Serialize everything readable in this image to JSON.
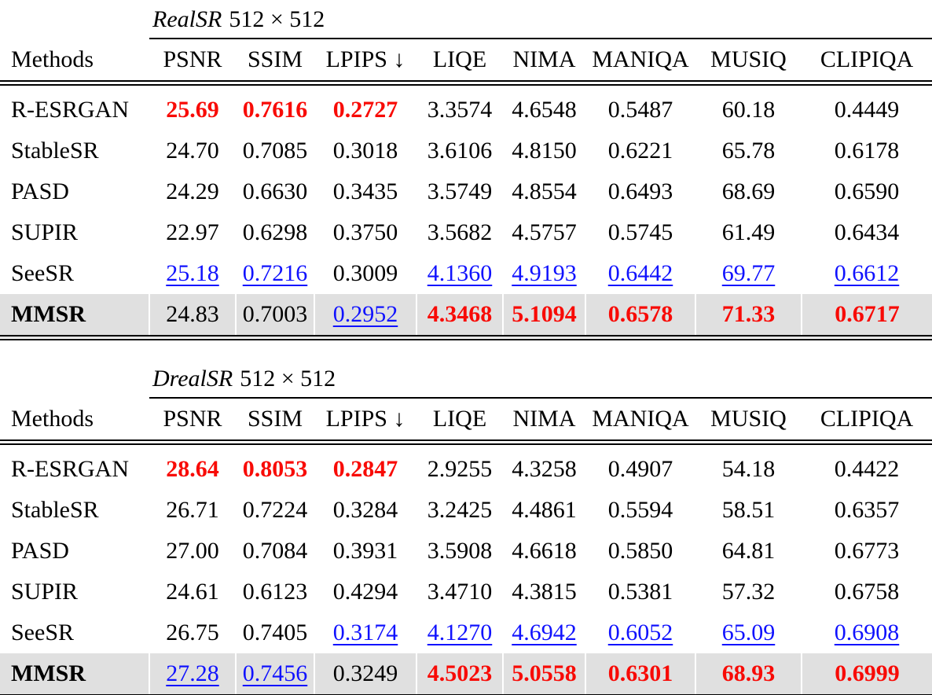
{
  "colors": {
    "best": "#f80b06",
    "second": "#1012fe",
    "highlight_row_bg": "#e0e0e0"
  },
  "legend": {
    "best_style": "red bold",
    "second_style": "blue underline"
  },
  "columns": [
    "Methods",
    "PSNR",
    "SSIM",
    "LPIPS ↓",
    "LIQE",
    "NIMA",
    "MANIQA",
    "MUSIQ",
    "CLIPIQA"
  ],
  "tables": [
    {
      "dataset": "RealSR",
      "size": "512 × 512",
      "rows": [
        {
          "method": "R-ESRGAN",
          "highlight": false,
          "cells": [
            {
              "v": "25.69",
              "s": "best"
            },
            {
              "v": "0.7616",
              "s": "best"
            },
            {
              "v": "0.2727",
              "s": "best"
            },
            {
              "v": "3.3574",
              "s": ""
            },
            {
              "v": "4.6548",
              "s": ""
            },
            {
              "v": "0.5487",
              "s": ""
            },
            {
              "v": "60.18",
              "s": ""
            },
            {
              "v": "0.4449",
              "s": ""
            }
          ]
        },
        {
          "method": "StableSR",
          "highlight": false,
          "cells": [
            {
              "v": "24.70",
              "s": ""
            },
            {
              "v": "0.7085",
              "s": ""
            },
            {
              "v": "0.3018",
              "s": ""
            },
            {
              "v": "3.6106",
              "s": ""
            },
            {
              "v": "4.8150",
              "s": ""
            },
            {
              "v": "0.6221",
              "s": ""
            },
            {
              "v": "65.78",
              "s": ""
            },
            {
              "v": "0.6178",
              "s": ""
            }
          ]
        },
        {
          "method": "PASD",
          "highlight": false,
          "cells": [
            {
              "v": "24.29",
              "s": ""
            },
            {
              "v": "0.6630",
              "s": ""
            },
            {
              "v": "0.3435",
              "s": ""
            },
            {
              "v": "3.5749",
              "s": ""
            },
            {
              "v": "4.8554",
              "s": ""
            },
            {
              "v": "0.6493",
              "s": ""
            },
            {
              "v": "68.69",
              "s": ""
            },
            {
              "v": "0.6590",
              "s": ""
            }
          ]
        },
        {
          "method": "SUPIR",
          "highlight": false,
          "cells": [
            {
              "v": "22.97",
              "s": ""
            },
            {
              "v": "0.6298",
              "s": ""
            },
            {
              "v": "0.3750",
              "s": ""
            },
            {
              "v": "3.5682",
              "s": ""
            },
            {
              "v": "4.5757",
              "s": ""
            },
            {
              "v": "0.5745",
              "s": ""
            },
            {
              "v": "61.49",
              "s": ""
            },
            {
              "v": "0.6434",
              "s": ""
            }
          ]
        },
        {
          "method": "SeeSR",
          "highlight": false,
          "cells": [
            {
              "v": "25.18",
              "s": "second"
            },
            {
              "v": "0.7216",
              "s": "second"
            },
            {
              "v": "0.3009",
              "s": ""
            },
            {
              "v": "4.1360",
              "s": "second"
            },
            {
              "v": "4.9193",
              "s": "second"
            },
            {
              "v": "0.6442",
              "s": "second"
            },
            {
              "v": "69.77",
              "s": "second"
            },
            {
              "v": "0.6612",
              "s": "second"
            }
          ]
        },
        {
          "method": "MMSR",
          "highlight": true,
          "cells": [
            {
              "v": "24.83",
              "s": ""
            },
            {
              "v": "0.7003",
              "s": ""
            },
            {
              "v": "0.2952",
              "s": "second"
            },
            {
              "v": "4.3468",
              "s": "best"
            },
            {
              "v": "5.1094",
              "s": "best"
            },
            {
              "v": "0.6578",
              "s": "best"
            },
            {
              "v": "71.33",
              "s": "best"
            },
            {
              "v": "0.6717",
              "s": "best"
            }
          ]
        }
      ]
    },
    {
      "dataset": "DrealSR",
      "size": "512 × 512",
      "rows": [
        {
          "method": "R-ESRGAN",
          "highlight": false,
          "cells": [
            {
              "v": "28.64",
              "s": "best"
            },
            {
              "v": "0.8053",
              "s": "best"
            },
            {
              "v": "0.2847",
              "s": "best"
            },
            {
              "v": "2.9255",
              "s": ""
            },
            {
              "v": "4.3258",
              "s": ""
            },
            {
              "v": "0.4907",
              "s": ""
            },
            {
              "v": "54.18",
              "s": ""
            },
            {
              "v": "0.4422",
              "s": ""
            }
          ]
        },
        {
          "method": "StableSR",
          "highlight": false,
          "cells": [
            {
              "v": "26.71",
              "s": ""
            },
            {
              "v": "0.7224",
              "s": ""
            },
            {
              "v": "0.3284",
              "s": ""
            },
            {
              "v": "3.2425",
              "s": ""
            },
            {
              "v": "4.4861",
              "s": ""
            },
            {
              "v": "0.5594",
              "s": ""
            },
            {
              "v": "58.51",
              "s": ""
            },
            {
              "v": "0.6357",
              "s": ""
            }
          ]
        },
        {
          "method": "PASD",
          "highlight": false,
          "cells": [
            {
              "v": "27.00",
              "s": ""
            },
            {
              "v": "0.7084",
              "s": ""
            },
            {
              "v": "0.3931",
              "s": ""
            },
            {
              "v": "3.5908",
              "s": ""
            },
            {
              "v": "4.6618",
              "s": ""
            },
            {
              "v": "0.5850",
              "s": ""
            },
            {
              "v": "64.81",
              "s": ""
            },
            {
              "v": "0.6773",
              "s": ""
            }
          ]
        },
        {
          "method": "SUPIR",
          "highlight": false,
          "cells": [
            {
              "v": "24.61",
              "s": ""
            },
            {
              "v": "0.6123",
              "s": ""
            },
            {
              "v": "0.4294",
              "s": ""
            },
            {
              "v": "3.4710",
              "s": ""
            },
            {
              "v": "4.3815",
              "s": ""
            },
            {
              "v": "0.5381",
              "s": ""
            },
            {
              "v": "57.32",
              "s": ""
            },
            {
              "v": "0.6758",
              "s": ""
            }
          ]
        },
        {
          "method": "SeeSR",
          "highlight": false,
          "cells": [
            {
              "v": "26.75",
              "s": ""
            },
            {
              "v": "0.7405",
              "s": ""
            },
            {
              "v": "0.3174",
              "s": "second"
            },
            {
              "v": "4.1270",
              "s": "second"
            },
            {
              "v": "4.6942",
              "s": "second"
            },
            {
              "v": "0.6052",
              "s": "second"
            },
            {
              "v": "65.09",
              "s": "second"
            },
            {
              "v": "0.6908",
              "s": "second"
            }
          ]
        },
        {
          "method": "MMSR",
          "highlight": true,
          "cells": [
            {
              "v": "27.28",
              "s": "second"
            },
            {
              "v": "0.7456",
              "s": "second"
            },
            {
              "v": "0.3249",
              "s": ""
            },
            {
              "v": "4.5023",
              "s": "best"
            },
            {
              "v": "5.0558",
              "s": "best"
            },
            {
              "v": "0.6301",
              "s": "best"
            },
            {
              "v": "68.93",
              "s": "best"
            },
            {
              "v": "0.6999",
              "s": "best"
            }
          ]
        }
      ]
    }
  ]
}
